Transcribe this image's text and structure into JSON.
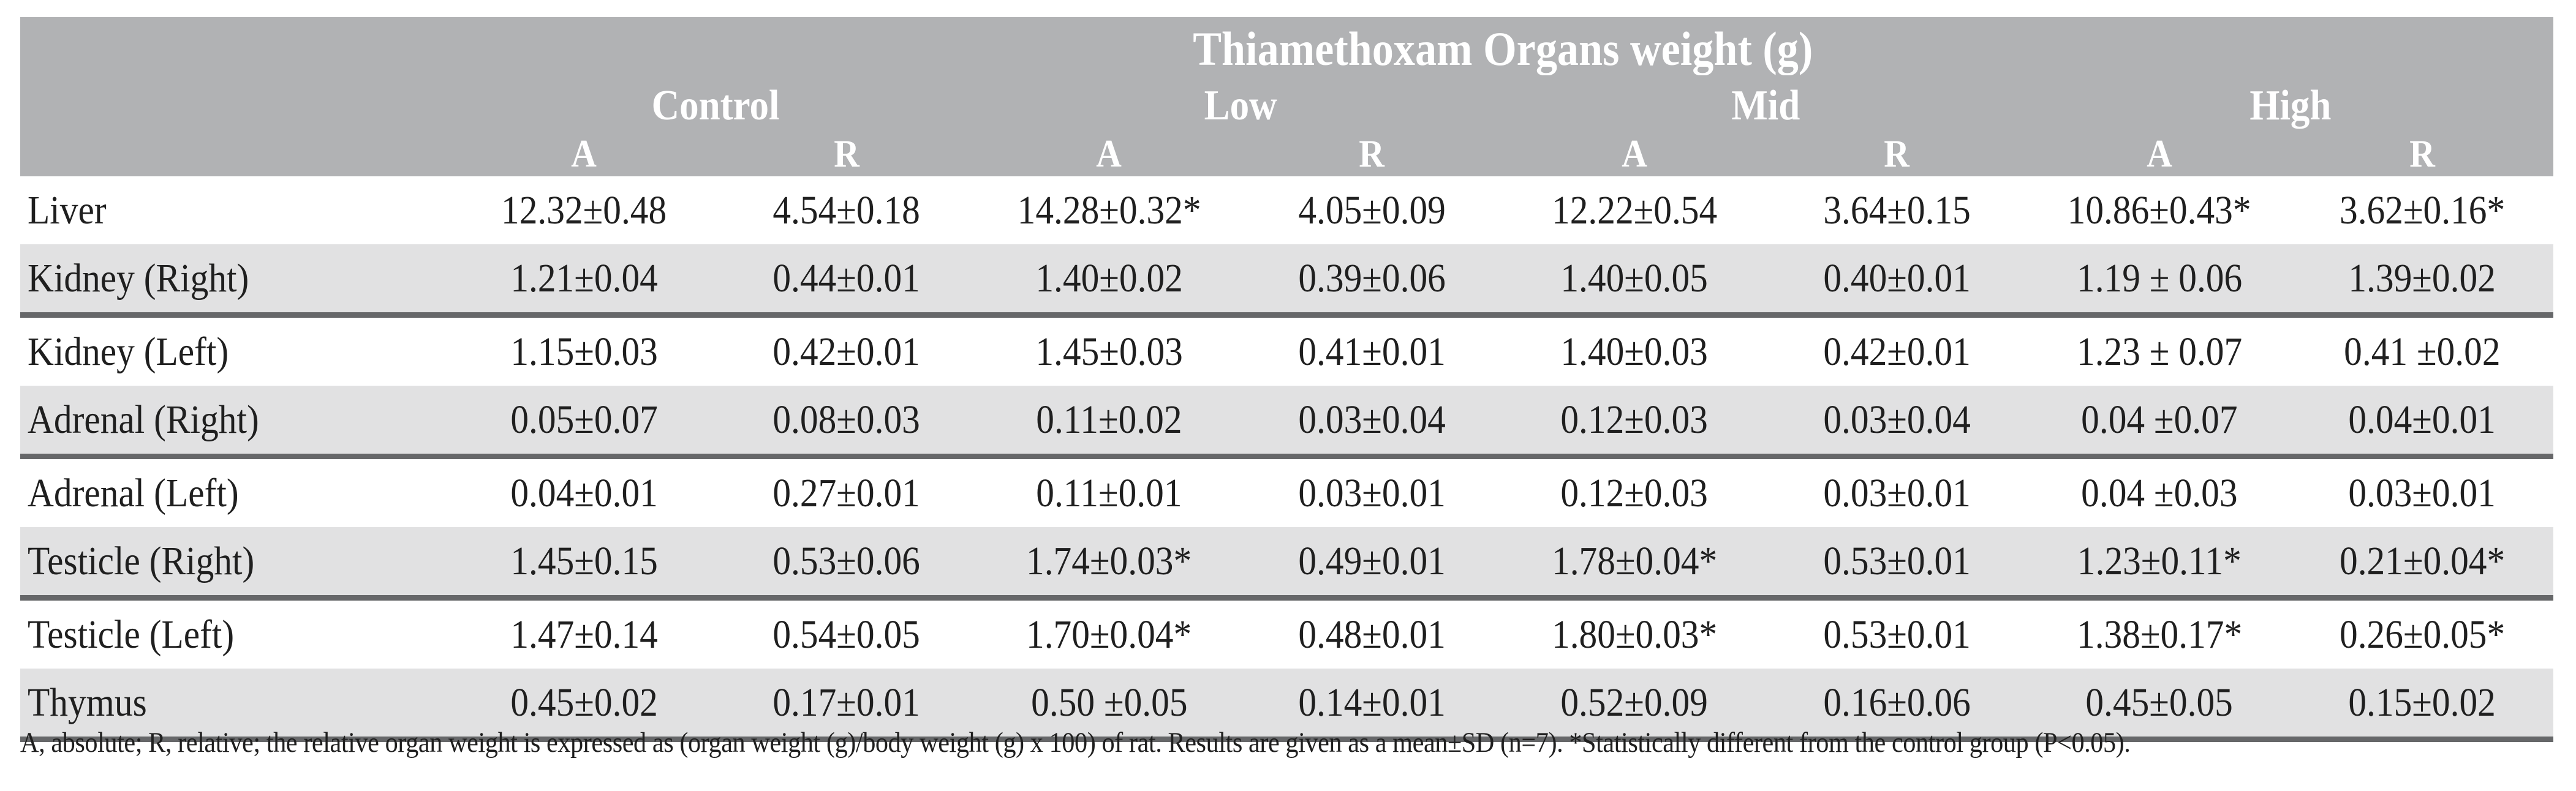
{
  "table": {
    "title": "Thiamethoxam Organs weight (g)",
    "groups": [
      {
        "label": "Control"
      },
      {
        "label": "Low"
      },
      {
        "label": "Mid"
      },
      {
        "label": "High"
      }
    ],
    "subheaders": [
      "A",
      "R",
      "A",
      "R",
      "A",
      "R",
      "A",
      "R"
    ],
    "rows": [
      {
        "organ": "Liver",
        "values": [
          "12.32±0.48",
          "4.54±0.18",
          "14.28±0.32*",
          "4.05±0.09",
          "12.22±0.54",
          "3.64±0.15",
          "10.86±0.43*",
          "3.62±0.16*"
        ]
      },
      {
        "organ": "Kidney (Right)",
        "values": [
          "1.21±0.04",
          "0.44±0.01",
          "1.40±0.02",
          "0.39±0.06",
          "1.40±0.05",
          "0.40±0.01",
          "1.19 ± 0.06",
          "1.39±0.02"
        ]
      },
      {
        "organ": "Kidney (Left)",
        "values": [
          "1.15±0.03",
          "0.42±0.01",
          "1.45±0.03",
          "0.41±0.01",
          "1.40±0.03",
          "0.42±0.01",
          "1.23 ± 0.07",
          "0.41 ±0.02"
        ]
      },
      {
        "organ": "Adrenal (Right)",
        "values": [
          "0.05±0.07",
          "0.08±0.03",
          "0.11±0.02",
          "0.03±0.04",
          "0.12±0.03",
          "0.03±0.04",
          "0.04 ±0.07",
          "0.04±0.01"
        ]
      },
      {
        "organ": "Adrenal (Left)",
        "values": [
          "0.04±0.01",
          "0.27±0.01",
          "0.11±0.01",
          "0.03±0.01",
          "0.12±0.03",
          "0.03±0.01",
          "0.04 ±0.03",
          "0.03±0.01"
        ]
      },
      {
        "organ": "Testicle (Right)",
        "values": [
          "1.45±0.15",
          "0.53±0.06",
          "1.74±0.03*",
          "0.49±0.01",
          "1.78±0.04*",
          "0.53±0.01",
          "1.23±0.11*",
          "0.21±0.04*"
        ]
      },
      {
        "organ": "Testicle (Left)",
        "values": [
          "1.47±0.14",
          "0.54±0.05",
          "1.70±0.04*",
          "0.48±0.01",
          "1.80±0.03*",
          "0.53±0.01",
          "1.38±0.17*",
          "0.26±0.05*"
        ]
      },
      {
        "organ": "Thymus",
        "values": [
          "0.45±0.02",
          "0.17±0.01",
          "0.50 ±0.05",
          "0.14±0.01",
          "0.52±0.09",
          "0.16±0.06",
          "0.45±0.05",
          "0.15±0.02"
        ]
      }
    ],
    "footnote": "A, absolute; R, relative; the relative organ weight is expressed as (organ weight (g)/body weight (g) x 100) of rat. Results are given as a mean±SD (n=7). *Statistically different from the control group (P<0.05).",
    "colors": {
      "header_bg": "#b1b2b4",
      "stripe_bg": "#e1e1e2",
      "separator": "#666769",
      "text": "#1f1f1f",
      "header_text": "#ffffff"
    }
  }
}
